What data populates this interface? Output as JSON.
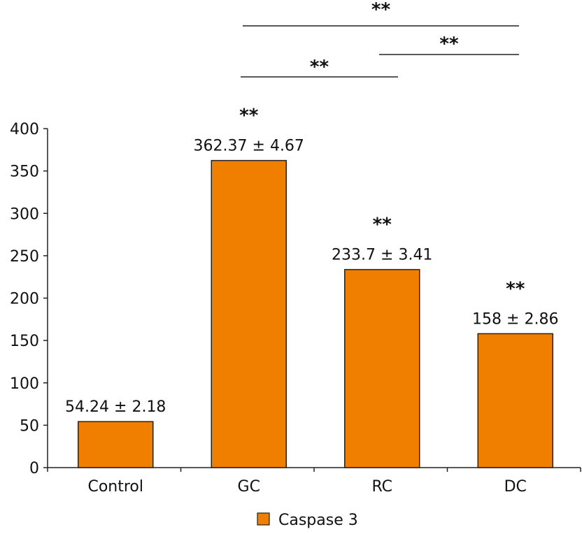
{
  "chart_data": {
    "type": "bar",
    "categories": [
      "Control",
      "GC",
      "RC",
      "DC"
    ],
    "series": [
      {
        "name": "Caspase 3",
        "values": [
          54.24,
          362.37,
          233.7,
          158
        ],
        "errors": [
          2.18,
          4.67,
          3.41,
          2.86
        ],
        "color": "#F07F00"
      }
    ],
    "data_labels": [
      "54.24 ± 2.18",
      "362.37 ± 4.67",
      "233.7 ± 3.41",
      "158 ± 2.86"
    ],
    "bar_significance": [
      "",
      "**",
      "**",
      "**"
    ],
    "comparisons": [
      {
        "from": "GC",
        "to": "DC",
        "label": "**"
      },
      {
        "from": "RC",
        "to": "DC",
        "label": "**"
      },
      {
        "from": "GC",
        "to": "RC",
        "label": "**"
      }
    ],
    "ylim": [
      0,
      400
    ],
    "yticks": [
      0,
      50,
      100,
      150,
      200,
      250,
      300,
      350,
      400
    ],
    "title": "",
    "xlabel": "",
    "ylabel": "",
    "grid": false,
    "legend_position": "bottom"
  }
}
